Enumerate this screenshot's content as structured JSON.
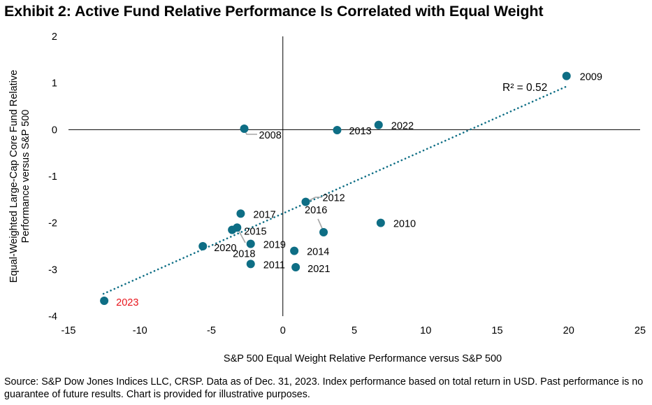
{
  "title": "Exhibit 2: Active Fund Relative Performance Is Correlated with Equal Weight",
  "source": "Source: S&P Dow Jones Indices LLC, CRSP. Data as of Dec. 31, 2023. Index performance based on total return in USD. Past performance is no guarantee of future results. Chart is provided for illustrative purposes.",
  "colors": {
    "marker": "#0e6e85",
    "trendline": "#0e6e85",
    "highlight_label": "#e8141b",
    "leader_line": "#a6a6a6"
  },
  "chart_data": {
    "type": "scatter",
    "title": "Exhibit 2: Active Fund Relative Performance Is Correlated with Equal Weight",
    "xlabel": "S&P 500 Equal Weight Relative Performance versus S&P 500",
    "ylabel": "Equal-Weighted Large-Cap Core Fund Relative Performance versus S&P 500",
    "ylabel_lines": [
      "Equal-Weighted Large-Cap Core Fund Relative",
      "Performance versus S&P 500"
    ],
    "xlim": [
      -15,
      25
    ],
    "ylim": [
      -4,
      2
    ],
    "xticks": [
      -15,
      -10,
      -5,
      0,
      5,
      10,
      15,
      20,
      25
    ],
    "yticks": [
      2,
      1,
      0,
      -1,
      -2,
      -3,
      -4
    ],
    "xtick_labels": [
      "-15",
      "-10",
      "-5",
      "0",
      "5",
      "10",
      "15",
      "20",
      "25"
    ],
    "ytick_labels": [
      "2",
      "1",
      "0",
      "-1",
      "-2",
      "-3",
      "-4"
    ],
    "grid": false,
    "points": [
      {
        "label": "2008",
        "x": -2.7,
        "y": 0.02,
        "highlight": false
      },
      {
        "label": "2009",
        "x": 19.85,
        "y": 1.15,
        "highlight": false
      },
      {
        "label": "2010",
        "x": 6.85,
        "y": -2.0,
        "highlight": false
      },
      {
        "label": "2011",
        "x": -2.25,
        "y": -2.88,
        "highlight": false
      },
      {
        "label": "2012",
        "x": 1.6,
        "y": -1.55,
        "highlight": false
      },
      {
        "label": "2013",
        "x": 3.8,
        "y": -0.01,
        "highlight": false
      },
      {
        "label": "2014",
        "x": 0.8,
        "y": -2.6,
        "highlight": false
      },
      {
        "label": "2015",
        "x": -3.2,
        "y": -2.1,
        "highlight": false
      },
      {
        "label": "2016",
        "x": 2.85,
        "y": -2.2,
        "highlight": false
      },
      {
        "label": "2017",
        "x": -2.95,
        "y": -1.8,
        "highlight": false
      },
      {
        "label": "2018",
        "x": -3.55,
        "y": -2.15,
        "highlight": false
      },
      {
        "label": "2019",
        "x": -2.25,
        "y": -2.45,
        "highlight": false
      },
      {
        "label": "2020",
        "x": -5.6,
        "y": -2.5,
        "highlight": false
      },
      {
        "label": "2021",
        "x": 0.9,
        "y": -2.95,
        "highlight": false
      },
      {
        "label": "2022",
        "x": 6.7,
        "y": 0.1,
        "highlight": false
      },
      {
        "label": "2023",
        "x": -12.5,
        "y": -3.67,
        "highlight": true
      }
    ],
    "trendline": {
      "type": "linear",
      "style": "dotted",
      "x_range": [
        -12.55,
        19.8
      ],
      "y_at_range": [
        -3.52,
        0.92
      ],
      "annotation": "R² = 0.52",
      "r_squared": 0.52
    }
  }
}
